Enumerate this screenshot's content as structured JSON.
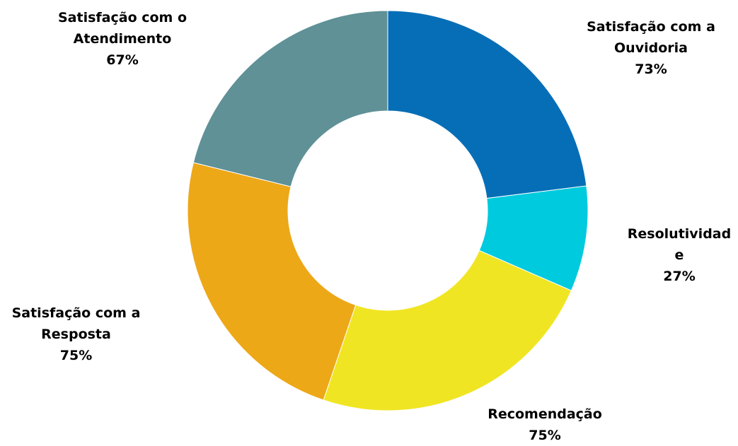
{
  "chart_data": {
    "type": "pie",
    "style": "donut",
    "start": "top",
    "direction": "clockwise",
    "slices": [
      {
        "label_lines": [
          "Satisfação com a",
          "Ouvidoria"
        ],
        "percent_label": "73%",
        "value": 73,
        "color": "#066eb6"
      },
      {
        "label_lines": [
          "Resolutividad",
          "e"
        ],
        "percent_label": "27%",
        "value": 27,
        "color": "#00cade"
      },
      {
        "label_lines": [
          "Recomendação"
        ],
        "percent_label": "75%",
        "value": 75,
        "color": "#f0e523"
      },
      {
        "label_lines": [
          "Satisfação com a",
          "Resposta"
        ],
        "percent_label": "75%",
        "value": 75,
        "color": "#eda818"
      },
      {
        "label_lines": [
          "Satisfação com o",
          "Atendimento"
        ],
        "percent_label": "67%",
        "value": 67,
        "color": "#5f9197"
      }
    ]
  }
}
